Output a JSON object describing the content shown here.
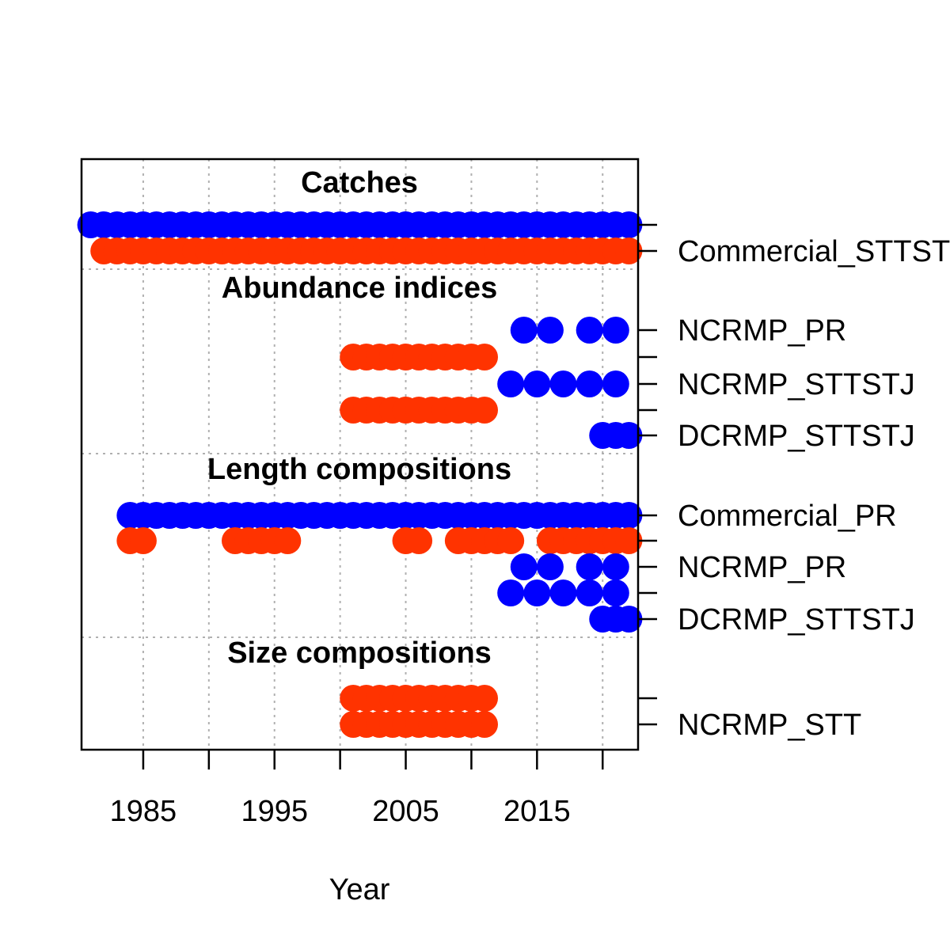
{
  "chart_data": {
    "type": "scatter",
    "xlabel": "Year",
    "xlim": [
      1980.3,
      2022.7
    ],
    "x_ticks": [
      1985,
      1990,
      1995,
      2000,
      2005,
      2010,
      2015,
      2020
    ],
    "x_tick_labels": [
      "1985",
      "1995",
      "2005",
      "2015"
    ],
    "grid": true,
    "colors": {
      "a": "#0000FF",
      "b": "#FF3300"
    },
    "sections": [
      {
        "title": "Catches",
        "rows": [
          {
            "label": "",
            "color": "a",
            "years": [
              1981,
              1982,
              1983,
              1984,
              1985,
              1986,
              1987,
              1988,
              1989,
              1990,
              1991,
              1992,
              1993,
              1994,
              1995,
              1996,
              1997,
              1998,
              1999,
              2000,
              2001,
              2002,
              2003,
              2004,
              2005,
              2006,
              2007,
              2008,
              2009,
              2010,
              2011,
              2012,
              2013,
              2014,
              2015,
              2016,
              2017,
              2018,
              2019,
              2020,
              2021,
              2022
            ]
          },
          {
            "label": "Commercial_STTSTJ",
            "color": "b",
            "years": [
              1982,
              1983,
              1984,
              1985,
              1986,
              1987,
              1988,
              1989,
              1990,
              1991,
              1992,
              1993,
              1994,
              1995,
              1996,
              1997,
              1998,
              1999,
              2000,
              2001,
              2002,
              2003,
              2004,
              2005,
              2006,
              2007,
              2008,
              2009,
              2010,
              2011,
              2012,
              2013,
              2014,
              2015,
              2016,
              2017,
              2018,
              2019,
              2020,
              2021,
              2022
            ]
          }
        ]
      },
      {
        "title": "Abundance indices",
        "rows": [
          {
            "label": "NCRMP_PR",
            "color": "a",
            "years": [
              2014,
              2016,
              2019,
              2021
            ]
          },
          {
            "label": "",
            "color": "b",
            "years": [
              2001,
              2002,
              2003,
              2004,
              2005,
              2006,
              2007,
              2008,
              2009,
              2010,
              2011
            ]
          },
          {
            "label": "NCRMP_STTSTJ",
            "color": "a",
            "years": [
              2013,
              2015,
              2017,
              2019,
              2021
            ]
          },
          {
            "label": "",
            "color": "b",
            "years": [
              2001,
              2002,
              2003,
              2004,
              2005,
              2006,
              2007,
              2008,
              2009,
              2010,
              2011
            ]
          },
          {
            "label": "DCRMP_STTSTJ",
            "color": "a",
            "years": [
              2020,
              2021,
              2022
            ]
          }
        ]
      },
      {
        "title": "Length compositions",
        "rows": [
          {
            "label": "Commercial_PR",
            "color": "a",
            "years": [
              1984,
              1985,
              1986,
              1987,
              1988,
              1989,
              1990,
              1991,
              1992,
              1993,
              1994,
              1995,
              1996,
              1997,
              1998,
              1999,
              2000,
              2001,
              2002,
              2003,
              2004,
              2005,
              2006,
              2007,
              2008,
              2009,
              2010,
              2011,
              2012,
              2013,
              2014,
              2015,
              2016,
              2017,
              2018,
              2019,
              2020,
              2021,
              2022
            ]
          },
          {
            "label": "",
            "color": "b",
            "years": [
              1984,
              1985,
              1992,
              1993,
              1994,
              1995,
              1996,
              2005,
              2006,
              2009,
              2010,
              2011,
              2012,
              2013,
              2016,
              2017,
              2018,
              2019,
              2020,
              2021,
              2022
            ]
          },
          {
            "label": "NCRMP_PR",
            "color": "a",
            "years": [
              2014,
              2016,
              2019,
              2021
            ]
          },
          {
            "label": "",
            "color": "a",
            "years": [
              2013,
              2015,
              2017,
              2019,
              2021
            ]
          },
          {
            "label": "DCRMP_STTSTJ",
            "color": "a",
            "years": [
              2020,
              2021,
              2022
            ]
          }
        ]
      },
      {
        "title": "Size compositions",
        "rows": [
          {
            "label": "",
            "color": "b",
            "years": [
              2001,
              2002,
              2003,
              2004,
              2005,
              2006,
              2007,
              2008,
              2009,
              2010,
              2011
            ]
          },
          {
            "label": "NCRMP_STT",
            "color": "b",
            "years": [
              2001,
              2002,
              2003,
              2004,
              2005,
              2006,
              2007,
              2008,
              2009,
              2010,
              2011
            ]
          }
        ]
      }
    ]
  }
}
